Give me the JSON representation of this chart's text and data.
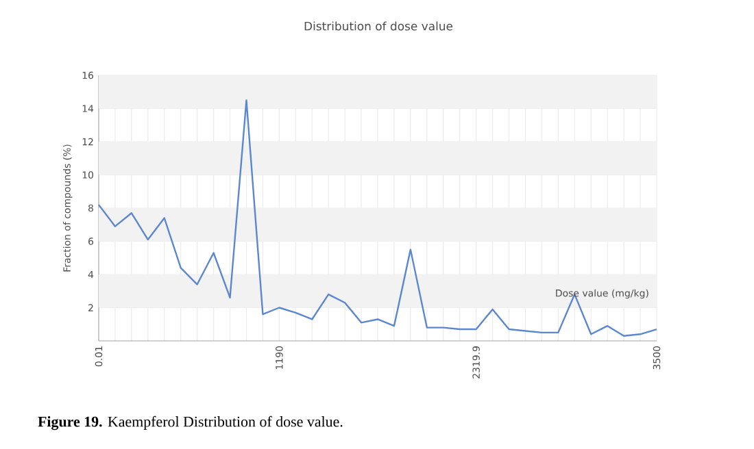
{
  "chart_data": {
    "type": "line",
    "title": "Distribution of dose value",
    "xlabel": "Dose value (mg/kg)",
    "ylabel": "Fraction of compounds (%)",
    "categories": [
      "0.01",
      null,
      null,
      null,
      null,
      null,
      null,
      null,
      null,
      null,
      null,
      "1190",
      null,
      null,
      null,
      null,
      null,
      null,
      null,
      null,
      null,
      null,
      null,
      "2319.9",
      null,
      null,
      null,
      null,
      null,
      null,
      null,
      null,
      null,
      null,
      "3500"
    ],
    "series": [
      {
        "color": "#5b87d0",
        "values": [
          8.2,
          6.9,
          7.7,
          6.1,
          7.4,
          4.4,
          3.4,
          5.3,
          2.6,
          14.5,
          1.6,
          2.0,
          1.7,
          1.3,
          2.8,
          2.3,
          1.1,
          1.3,
          0.9,
          5.5,
          0.8,
          0.8,
          0.7,
          0.7,
          1.9,
          0.7,
          0.6,
          0.5,
          0.5,
          2.8,
          0.4,
          0.9,
          0.3,
          0.4,
          0.7
        ]
      }
    ],
    "ylim": [
      0,
      16
    ],
    "yticks": [
      2,
      4,
      6,
      8,
      10,
      12,
      14,
      16
    ],
    "grid": true,
    "marker": "none",
    "line_style": "solid",
    "annotations": [
      "**Figure 19.** Kaempferol Distribution of dose value."
    ]
  }
}
